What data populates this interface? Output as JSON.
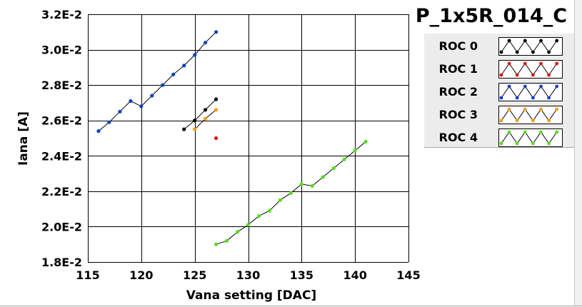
{
  "chart_data": {
    "type": "line",
    "title": "P_1x5R_014_C",
    "xlabel": "Vana setting [DAC]",
    "ylabel": "Iana [A]",
    "xlim": [
      115,
      145
    ],
    "ylim": [
      0.018,
      0.032
    ],
    "x_ticks": [
      115,
      120,
      125,
      130,
      135,
      140,
      145
    ],
    "y_ticks": [
      {
        "value": 0.018,
        "label": "1.8E-2"
      },
      {
        "value": 0.02,
        "label": "2.0E-2"
      },
      {
        "value": 0.022,
        "label": "2.2E-2"
      },
      {
        "value": 0.024,
        "label": "2.4E-2"
      },
      {
        "value": 0.026,
        "label": "2.6E-2"
      },
      {
        "value": 0.028,
        "label": "2.8E-2"
      },
      {
        "value": 0.03,
        "label": "3.0E-2"
      },
      {
        "value": 0.032,
        "label": "3.2E-2"
      }
    ],
    "grid": true,
    "legend_position": "right",
    "series": [
      {
        "name": "ROC 0",
        "color": "#000000",
        "points": [
          [
            124,
            0.0255
          ],
          [
            125,
            0.026
          ],
          [
            126,
            0.0266
          ],
          [
            127,
            0.0272
          ]
        ]
      },
      {
        "name": "ROC 1",
        "color": "#e01010",
        "points": [
          [
            127,
            0.025
          ]
        ]
      },
      {
        "name": "ROC 2",
        "color": "#1040c8",
        "points": [
          [
            116,
            0.0254
          ],
          [
            117,
            0.0259
          ],
          [
            118,
            0.0265
          ],
          [
            119,
            0.0271
          ],
          [
            120,
            0.0268
          ],
          [
            121,
            0.0274
          ],
          [
            122,
            0.028
          ],
          [
            123,
            0.0286
          ],
          [
            124,
            0.0291
          ],
          [
            125,
            0.0297
          ],
          [
            126,
            0.0304
          ],
          [
            127,
            0.031
          ]
        ]
      },
      {
        "name": "ROC 3",
        "color": "#ff9a00",
        "points": [
          [
            125,
            0.0255
          ],
          [
            126,
            0.0261
          ],
          [
            127,
            0.0266
          ]
        ]
      },
      {
        "name": "ROC 4",
        "color": "#55e01a",
        "points": [
          [
            127,
            0.019
          ],
          [
            128,
            0.0192
          ],
          [
            129,
            0.0197
          ],
          [
            130,
            0.0201
          ],
          [
            131,
            0.0206
          ],
          [
            132,
            0.0209
          ],
          [
            133,
            0.0215
          ],
          [
            134,
            0.0219
          ],
          [
            135,
            0.0224
          ],
          [
            136,
            0.0223
          ],
          [
            137,
            0.0228
          ],
          [
            138,
            0.0233
          ],
          [
            139,
            0.0238
          ],
          [
            140,
            0.0243
          ],
          [
            141,
            0.0248
          ]
        ]
      }
    ]
  }
}
